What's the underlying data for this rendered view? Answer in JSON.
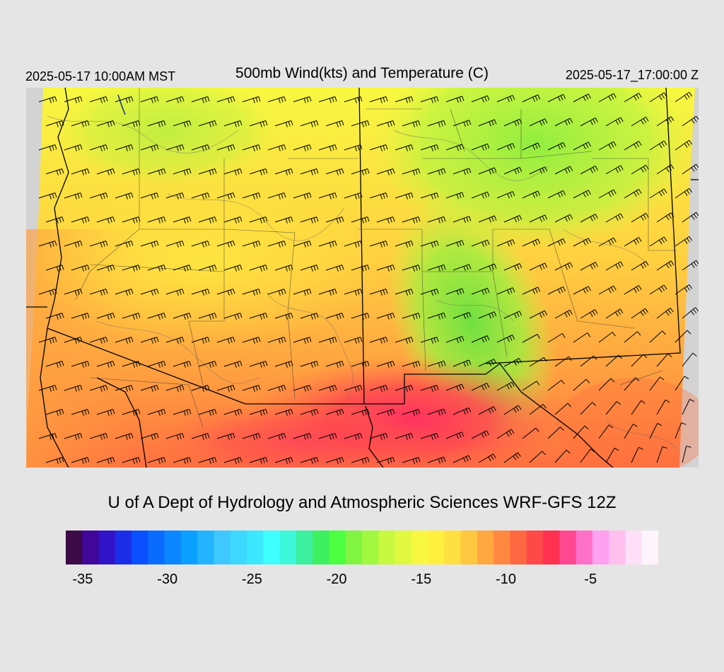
{
  "header": {
    "valid_local": "2025-05-17 10:00AM MST",
    "title": "500mb Wind(kts) and Temperature (C)",
    "valid_utc": "2025-05-17_17:00:00 Z"
  },
  "footer": {
    "credit": "U of A Dept of Hydrology and Atmospheric Sciences WRF-GFS 12Z"
  },
  "legend": {
    "unit": "C",
    "colors": [
      "#3b0a47",
      "#41069a",
      "#3214c8",
      "#1a2ee8",
      "#0a50ff",
      "#0a6cff",
      "#0a86ff",
      "#0aa0ff",
      "#24b4ff",
      "#3ec8ff",
      "#3cd8ff",
      "#3ce8ff",
      "#40ffff",
      "#3cf8d8",
      "#3cf0a0",
      "#3cf060",
      "#4cff40",
      "#80f440",
      "#a0f840",
      "#c8f840",
      "#e0f840",
      "#f8f840",
      "#fff040",
      "#ffe040",
      "#ffc840",
      "#ffa840",
      "#ff8840",
      "#ff6840",
      "#ff4848",
      "#ff3050",
      "#ff4890",
      "#ff70c8",
      "#ffa0f0",
      "#ffc0f0",
      "#ffe0f8",
      "#fff4fc"
    ],
    "ticks": [
      {
        "label": "-35",
        "frac": 0.0286
      },
      {
        "label": "-30",
        "frac": 0.1714
      },
      {
        "label": "-25",
        "frac": 0.3143
      },
      {
        "label": "-20",
        "frac": 0.4571
      },
      {
        "label": "-15",
        "frac": 0.6
      },
      {
        "label": "-10",
        "frac": 0.7429
      },
      {
        "label": "-5",
        "frac": 0.8857
      }
    ]
  }
}
